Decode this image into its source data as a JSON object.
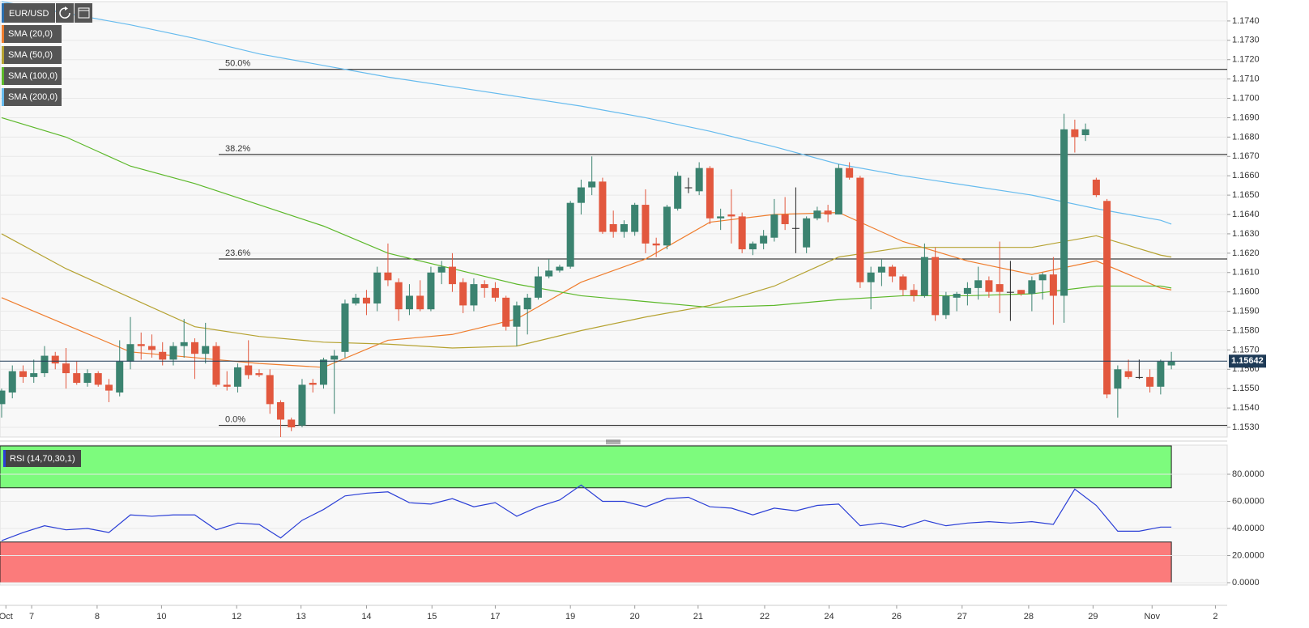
{
  "chart_data": [
    {
      "type": "candlestick",
      "title": "EUR/USD",
      "open": [
        1.1542,
        1.1548,
        1.1559,
        1.1556,
        1.1558,
        1.1567,
        1.1563,
        1.1558,
        1.1553,
        1.1558,
        1.1552,
        1.1548,
        1.1564,
        1.1573,
        1.1572,
        1.1569,
        1.1565,
        1.1572,
        1.1574,
        1.1568,
        1.1572,
        1.1552,
        1.1551,
        1.1562,
        1.1558,
        1.1557,
        1.1543,
        1.1534,
        1.1531,
        1.1553,
        1.1552,
        1.1565,
        1.1569,
        1.1594,
        1.1597,
        1.1594,
        1.161,
        1.1605,
        1.1591,
        1.1598,
        1.1591,
        1.161,
        1.1613,
        1.1605,
        1.1593,
        1.1604,
        1.1602,
        1.1597,
        1.1582,
        1.1591,
        1.1597,
        1.1608,
        1.1611,
        1.1613,
        1.1646,
        1.1654,
        1.1657,
        1.1635,
        1.1631,
        1.1631,
        1.1645,
        1.1625,
        1.1624,
        1.1643,
        1.1654,
        1.1652,
        1.1664,
        1.1638,
        1.164,
        1.1639,
        1.1622,
        1.1625,
        1.1628,
        1.164,
        1.1633,
        1.1623,
        1.1638,
        1.1642,
        1.164,
        1.1664,
        1.1659,
        1.1605,
        1.161,
        1.1613,
        1.1608,
        1.1601,
        1.1598,
        1.1618,
        1.1588,
        1.1597,
        1.1599,
        1.1602,
        1.1606,
        1.1604,
        1.16,
        1.1601,
        1.1599,
        1.1606,
        1.1609,
        1.1598,
        1.1684,
        1.1681,
        1.1658,
        1.1647,
        1.155,
        1.1559,
        1.1556,
        1.1556,
        1.1551,
        1.1562
      ],
      "high": [
        1.155,
        1.1562,
        1.1562,
        1.1565,
        1.1572,
        1.1569,
        1.1571,
        1.1564,
        1.156,
        1.1559,
        1.1555,
        1.1575,
        1.1587,
        1.1579,
        1.1578,
        1.1574,
        1.1574,
        1.1586,
        1.1576,
        1.1584,
        1.1574,
        1.1559,
        1.1563,
        1.1575,
        1.156,
        1.156,
        1.1544,
        1.1535,
        1.1555,
        1.1555,
        1.1566,
        1.157,
        1.1596,
        1.1599,
        1.1601,
        1.1613,
        1.1625,
        1.1607,
        1.1604,
        1.1606,
        1.1613,
        1.1616,
        1.162,
        1.1607,
        1.1607,
        1.1606,
        1.1605,
        1.1598,
        1.1595,
        1.1599,
        1.1613,
        1.1617,
        1.1614,
        1.1647,
        1.1658,
        1.167,
        1.1659,
        1.1642,
        1.1637,
        1.1646,
        1.1653,
        1.1628,
        1.1645,
        1.1662,
        1.1659,
        1.1667,
        1.1665,
        1.1643,
        1.1653,
        1.1641,
        1.1626,
        1.1632,
        1.1648,
        1.1649,
        1.1654,
        1.1639,
        1.1644,
        1.1645,
        1.1666,
        1.1667,
        1.166,
        1.1613,
        1.1617,
        1.1614,
        1.1609,
        1.1604,
        1.1625,
        1.1623,
        1.16,
        1.16,
        1.1605,
        1.1613,
        1.1608,
        1.1626,
        1.1616,
        1.1601,
        1.1608,
        1.161,
        1.1618,
        1.1692,
        1.1689,
        1.1687,
        1.1659,
        1.1648,
        1.1562,
        1.1565,
        1.1565,
        1.156,
        1.1565,
        1.1569
      ],
      "low": [
        1.1535,
        1.1545,
        1.1553,
        1.1553,
        1.1556,
        1.156,
        1.155,
        1.1552,
        1.1551,
        1.1551,
        1.1543,
        1.1546,
        1.156,
        1.1565,
        1.1566,
        1.1562,
        1.1562,
        1.1566,
        1.1555,
        1.1563,
        1.1551,
        1.1549,
        1.1548,
        1.1555,
        1.1556,
        1.1537,
        1.1525,
        1.1528,
        1.153,
        1.1548,
        1.155,
        1.1537,
        1.1566,
        1.1593,
        1.1588,
        1.159,
        1.1603,
        1.1585,
        1.1588,
        1.159,
        1.159,
        1.1604,
        1.16,
        1.1589,
        1.159,
        1.1597,
        1.1595,
        1.158,
        1.1572,
        1.1578,
        1.1596,
        1.1607,
        1.161,
        1.1612,
        1.164,
        1.165,
        1.163,
        1.1628,
        1.1628,
        1.1629,
        1.162,
        1.1618,
        1.1622,
        1.1642,
        1.1651,
        1.165,
        1.1635,
        1.1632,
        1.1625,
        1.162,
        1.1619,
        1.1622,
        1.1626,
        1.1632,
        1.162,
        1.162,
        1.1637,
        1.1636,
        1.164,
        1.1658,
        1.1602,
        1.1591,
        1.1603,
        1.1605,
        1.1598,
        1.1595,
        1.1597,
        1.1585,
        1.1586,
        1.159,
        1.1593,
        1.1596,
        1.1597,
        1.1589,
        1.1585,
        1.1598,
        1.159,
        1.1596,
        1.1583,
        1.1584,
        1.1672,
        1.1678,
        1.1649,
        1.1545,
        1.1535,
        1.1555,
        1.1555,
        1.1548,
        1.1547,
        1.156
      ],
      "close": [
        1.1549,
        1.1559,
        1.1556,
        1.1558,
        1.1567,
        1.1563,
        1.1558,
        1.1553,
        1.1558,
        1.1552,
        1.1549,
        1.1564,
        1.1573,
        1.1572,
        1.157,
        1.1565,
        1.1572,
        1.1574,
        1.1568,
        1.1572,
        1.1552,
        1.1551,
        1.1561,
        1.1557,
        1.1557,
        1.1542,
        1.1534,
        1.153,
        1.1552,
        1.1552,
        1.1565,
        1.1567,
        1.1594,
        1.1597,
        1.1594,
        1.161,
        1.1606,
        1.1591,
        1.1598,
        1.1591,
        1.161,
        1.1613,
        1.1604,
        1.1593,
        1.1604,
        1.1602,
        1.1597,
        1.1582,
        1.1593,
        1.1597,
        1.1608,
        1.1611,
        1.1613,
        1.1646,
        1.1654,
        1.1657,
        1.1631,
        1.1631,
        1.1635,
        1.1645,
        1.1625,
        1.1624,
        1.1644,
        1.166,
        1.1654,
        1.1664,
        1.1638,
        1.1639,
        1.1639,
        1.1622,
        1.1625,
        1.1629,
        1.164,
        1.1635,
        1.1633,
        1.1638,
        1.1642,
        1.164,
        1.1664,
        1.1659,
        1.1605,
        1.161,
        1.1613,
        1.1608,
        1.1601,
        1.1598,
        1.1618,
        1.1588,
        1.1598,
        1.1599,
        1.1602,
        1.1606,
        1.16,
        1.16,
        1.16,
        1.1599,
        1.1606,
        1.1609,
        1.1598,
        1.1684,
        1.168,
        1.1684,
        1.165,
        1.1547,
        1.156,
        1.1556,
        1.1556,
        1.1551,
        1.1564,
        1.1564
      ],
      "up_color": "#3b8370",
      "down_color": "#e2583e",
      "flat_color": "#222222",
      "series": [
        {
          "name": "SMA (20,0)",
          "color": "#ef7d2d",
          "x": [
            0,
            6,
            12,
            18,
            24,
            30,
            36,
            42,
            48,
            54,
            60,
            66,
            72,
            78,
            84,
            90,
            96,
            102,
            108,
            109
          ],
          "values": [
            1.1597,
            1.1583,
            1.1569,
            1.1566,
            1.1563,
            1.1561,
            1.1575,
            1.1578,
            1.1586,
            1.1605,
            1.1617,
            1.1636,
            1.164,
            1.1641,
            1.1626,
            1.1616,
            1.1609,
            1.1616,
            1.1602,
            1.1601
          ]
        },
        {
          "name": "SMA (50,0)",
          "color": "#b5a231",
          "x": [
            0,
            6,
            12,
            18,
            24,
            30,
            36,
            42,
            48,
            54,
            60,
            66,
            72,
            78,
            84,
            90,
            96,
            102,
            108,
            109
          ],
          "values": [
            1.163,
            1.1612,
            1.1597,
            1.1582,
            1.1577,
            1.1574,
            1.1573,
            1.1571,
            1.1572,
            1.158,
            1.1587,
            1.1593,
            1.1603,
            1.1618,
            1.1623,
            1.1623,
            1.1623,
            1.1629,
            1.1619,
            1.1618
          ]
        },
        {
          "name": "SMA (100,0)",
          "color": "#5cb82a",
          "x": [
            0,
            6,
            12,
            18,
            24,
            30,
            36,
            42,
            48,
            54,
            60,
            66,
            72,
            78,
            84,
            90,
            96,
            102,
            108,
            109
          ],
          "values": [
            1.169,
            1.168,
            1.1665,
            1.1656,
            1.1645,
            1.1634,
            1.162,
            1.1612,
            1.1604,
            1.1598,
            1.1595,
            1.1592,
            1.1593,
            1.1596,
            1.1598,
            1.1598,
            1.1599,
            1.1603,
            1.1603,
            1.1602
          ]
        },
        {
          "name": "SMA (200,0)",
          "color": "#66bbee",
          "x": [
            0,
            6,
            12,
            18,
            24,
            30,
            36,
            42,
            48,
            54,
            60,
            66,
            72,
            78,
            84,
            90,
            96,
            102,
            108,
            109
          ],
          "values": [
            1.175,
            1.1744,
            1.1738,
            1.1731,
            1.1723,
            1.1717,
            1.1711,
            1.1706,
            1.1701,
            1.1696,
            1.169,
            1.1683,
            1.1675,
            1.1666,
            1.166,
            1.1655,
            1.165,
            1.1643,
            1.1637,
            1.1635
          ]
        }
      ],
      "fib_levels": [
        {
          "label": "50.0%",
          "value": 1.1715
        },
        {
          "label": "38.2%",
          "value": 1.1671
        },
        {
          "label": "23.6%",
          "value": 1.1617
        },
        {
          "label": "0.0%",
          "value": 1.1531
        }
      ],
      "last_price": 1.15642,
      "xlim": [
        -0.15,
        114.2
      ],
      "xticks": [
        {
          "value": 0.4,
          "label": "Oct"
        },
        {
          "value": 2.8,
          "label": "7"
        },
        {
          "value": 8.9,
          "label": "8"
        },
        {
          "value": 14.9,
          "label": "10"
        },
        {
          "value": 21.9,
          "label": "12"
        },
        {
          "value": 27.9,
          "label": "13"
        },
        {
          "value": 34,
          "label": "14"
        },
        {
          "value": 40.1,
          "label": "15"
        },
        {
          "value": 46,
          "label": "17"
        },
        {
          "value": 53,
          "label": "19"
        },
        {
          "value": 59,
          "label": "20"
        },
        {
          "value": 64.9,
          "label": "21"
        },
        {
          "value": 71.1,
          "label": "22"
        },
        {
          "value": 77.1,
          "label": "24"
        },
        {
          "value": 83.4,
          "label": "26"
        },
        {
          "value": 89.5,
          "label": "27"
        },
        {
          "value": 95.7,
          "label": "28"
        },
        {
          "value": 101.7,
          "label": "29"
        },
        {
          "value": 107.2,
          "label": "Nov"
        },
        {
          "value": 113.1,
          "label": "2"
        }
      ],
      "ylim": [
        1.1525,
        1.175
      ],
      "yticks": [
        {
          "value": 1.174,
          "label": "1.1740"
        },
        {
          "value": 1.173,
          "label": "1.1730"
        },
        {
          "value": 1.172,
          "label": "1.1720"
        },
        {
          "value": 1.171,
          "label": "1.1710"
        },
        {
          "value": 1.17,
          "label": "1.1700"
        },
        {
          "value": 1.169,
          "label": "1.1690"
        },
        {
          "value": 1.168,
          "label": "1.1680"
        },
        {
          "value": 1.167,
          "label": "1.1670"
        },
        {
          "value": 1.166,
          "label": "1.1660"
        },
        {
          "value": 1.165,
          "label": "1.1650"
        },
        {
          "value": 1.164,
          "label": "1.1640"
        },
        {
          "value": 1.163,
          "label": "1.1630"
        },
        {
          "value": 1.162,
          "label": "1.1620"
        },
        {
          "value": 1.161,
          "label": "1.1610"
        },
        {
          "value": 1.16,
          "label": "1.1600"
        },
        {
          "value": 1.159,
          "label": "1.1590"
        },
        {
          "value": 1.158,
          "label": "1.1580"
        },
        {
          "value": 1.157,
          "label": "1.1570"
        },
        {
          "value": 1.156,
          "label": "1.1560"
        },
        {
          "value": 1.155,
          "label": "1.1550"
        },
        {
          "value": 1.154,
          "label": "1.1540"
        },
        {
          "value": 1.153,
          "label": "1.1530"
        }
      ],
      "grid": true
    },
    {
      "type": "line",
      "title": "RSI (14,70,30,1)",
      "color": "#2b3fd6",
      "x": [
        0,
        2,
        4,
        6,
        8,
        10,
        12,
        14,
        16,
        18,
        20,
        22,
        24,
        26,
        28,
        30,
        32,
        34,
        36,
        38,
        40,
        42,
        44,
        46,
        48,
        50,
        52,
        54,
        56,
        58,
        60,
        62,
        64,
        66,
        68,
        70,
        72,
        74,
        76,
        78,
        80,
        82,
        84,
        86,
        88,
        90,
        92,
        94,
        96,
        98,
        100,
        102,
        104,
        106,
        108,
        109
      ],
      "values": [
        31,
        37,
        42,
        39,
        40,
        37,
        50,
        49,
        50,
        50,
        39,
        44,
        43,
        33,
        46,
        54,
        64,
        66,
        67,
        59,
        58,
        62,
        56,
        59,
        49,
        56,
        61,
        72,
        60,
        60,
        56,
        62,
        63,
        56,
        55,
        50,
        55,
        53,
        57,
        58,
        42,
        44,
        41,
        46,
        42,
        44,
        45,
        44,
        45,
        43,
        69,
        57,
        38,
        38,
        41,
        41
      ],
      "overbought": 70,
      "oversold": 30,
      "overbought_color": "#7dfb7d",
      "oversold_color": "#fb7b7b",
      "ylim": [
        -1.8,
        101.5
      ],
      "yticks": [
        {
          "value": 80,
          "label": "80.0000"
        },
        {
          "value": 60,
          "label": "60.0000"
        },
        {
          "value": 40,
          "label": "40.0000"
        },
        {
          "value": 20,
          "label": "20.0000"
        },
        {
          "value": 0,
          "label": "0.0000"
        }
      ],
      "grid": true
    }
  ]
}
